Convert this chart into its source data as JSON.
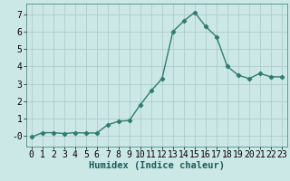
{
  "x": [
    0,
    1,
    2,
    3,
    4,
    5,
    6,
    7,
    8,
    9,
    10,
    11,
    12,
    13,
    14,
    15,
    16,
    17,
    18,
    19,
    20,
    21,
    22,
    23
  ],
  "y": [
    -0.05,
    0.2,
    0.2,
    0.15,
    0.2,
    0.18,
    0.18,
    0.65,
    0.85,
    0.9,
    1.8,
    2.6,
    3.3,
    6.0,
    6.6,
    7.1,
    6.3,
    5.7,
    4.0,
    3.5,
    3.3,
    3.6,
    3.4,
    3.4
  ],
  "line_color": "#2e7d6e",
  "marker": "D",
  "marker_size": 2.2,
  "bg_color": "#cce8e6",
  "grid_color": "#b0ccca",
  "xlabel": "Humidex (Indice chaleur)",
  "xlim": [
    -0.5,
    23.5
  ],
  "ylim": [
    -0.6,
    7.6
  ],
  "yticks": [
    0,
    1,
    2,
    3,
    4,
    5,
    6,
    7
  ],
  "ytick_labels": [
    "-0",
    "1",
    "2",
    "3",
    "4",
    "5",
    "6",
    "7"
  ],
  "xticks": [
    0,
    1,
    2,
    3,
    4,
    5,
    6,
    7,
    8,
    9,
    10,
    11,
    12,
    13,
    14,
    15,
    16,
    17,
    18,
    19,
    20,
    21,
    22,
    23
  ],
  "xlabel_fontsize": 7.5,
  "tick_fontsize": 7
}
